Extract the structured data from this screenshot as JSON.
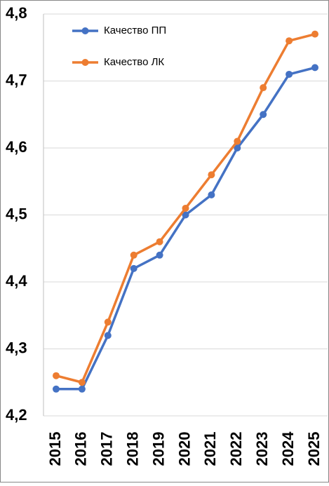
{
  "chart_data": {
    "type": "line",
    "categories": [
      "2015",
      "2016",
      "2017",
      "2018",
      "2019",
      "2020",
      "2021",
      "2022",
      "2023",
      "2024",
      "2025"
    ],
    "series": [
      {
        "name": "Качество ПП",
        "color": "#4472c4",
        "values": [
          4.24,
          4.24,
          4.32,
          4.42,
          4.44,
          4.5,
          4.53,
          4.6,
          4.65,
          4.71,
          4.72
        ]
      },
      {
        "name": "Качество ЛК",
        "color": "#ed7d31",
        "values": [
          4.26,
          4.25,
          4.34,
          4.44,
          4.46,
          4.51,
          4.56,
          4.61,
          4.69,
          4.76,
          4.77
        ]
      }
    ],
    "ylim": [
      4.2,
      4.8
    ],
    "yticks": [
      {
        "value": 4.2,
        "label": "4,2"
      },
      {
        "value": 4.3,
        "label": "4,3"
      },
      {
        "value": 4.4,
        "label": "4,4"
      },
      {
        "value": 4.5,
        "label": "4,5"
      },
      {
        "value": 4.6,
        "label": "4,6"
      },
      {
        "value": 4.7,
        "label": "4,7"
      },
      {
        "value": 4.8,
        "label": "4,8"
      }
    ],
    "grid": true,
    "legend": "top-left"
  }
}
